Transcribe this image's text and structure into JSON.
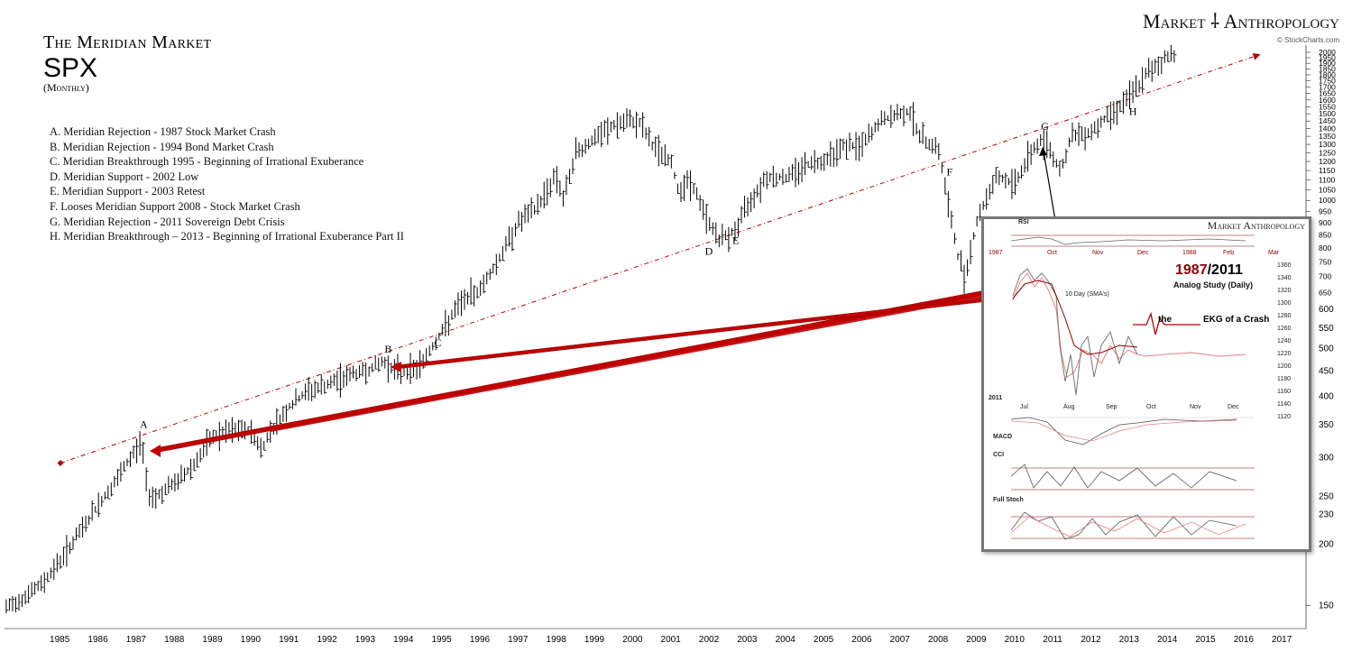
{
  "brand": "Market ⸸ Anthropology",
  "source": "© StockCharts.com",
  "title": {
    "line1": "The Meridian Market",
    "line2": "SPX",
    "line3": "(Monthly)"
  },
  "legend": [
    "A.  Meridian Rejection - 1987 Stock Market Crash",
    "B.  Meridian Rejection - 1994 Bond Market Crash",
    "C.  Meridian Breakthrough 1995 - Beginning of Irrational Exuberance",
    "D.  Meridian Support - 2002 Low",
    "E.  Meridian Support - 2003 Retest",
    "F.  Looses Meridian Support 2008 - Stock Market Crash",
    "G.  Meridian Rejection - 2011 Sovereign Debt Crisis",
    "H.  Meridian Breakthrough – 2013 - Beginning of Irrational Exuberance Part II"
  ],
  "chart_data": {
    "type": "line",
    "scale": "log",
    "xlim": [
      1984.6,
      2017.6
    ],
    "ylim": [
      140,
      2000
    ],
    "x_ticks": [
      "1985",
      "1986",
      "1987",
      "1988",
      "1989",
      "1990",
      "1991",
      "1992",
      "1993",
      "1994",
      "1995",
      "1996",
      "1997",
      "1998",
      "1999",
      "2000",
      "2001",
      "2002",
      "2003",
      "2004",
      "2005",
      "2006",
      "2007",
      "2008",
      "2009",
      "2010",
      "2011",
      "2012",
      "2013",
      "2014",
      "2015",
      "2016",
      "2017"
    ],
    "y_ticks": [
      150,
      200,
      230,
      250,
      300,
      350,
      400,
      450,
      500,
      550,
      600,
      650,
      700,
      750,
      800,
      850,
      900,
      950,
      1000,
      1050,
      1100,
      1150,
      1200,
      1250,
      1300,
      1350,
      1400,
      1450,
      1500,
      1550,
      1600,
      1650,
      1700,
      1750,
      1800,
      1850,
      1900,
      1950,
      2000
    ],
    "series": [
      {
        "x": [
          1985.0,
          1985.5,
          1986.0,
          1986.5,
          1987.0,
          1987.3,
          1987.65,
          1987.8,
          1988.0,
          1988.5,
          1989.0,
          1989.5,
          1990.0,
          1990.5,
          1990.8,
          1991.0,
          1991.5,
          1992.0,
          1992.5,
          1993.0,
          1993.5,
          1994.0,
          1994.3,
          1994.8,
          1995.0,
          1995.5,
          1996.0,
          1996.5,
          1997.0,
          1997.5,
          1998.0,
          1998.5,
          1998.7,
          1999.0,
          1999.5,
          2000.0,
          2000.5,
          2000.7,
          2001.0,
          2001.5,
          2001.7,
          2002.0,
          2002.5,
          2002.8,
          2003.0,
          2003.2,
          2003.5,
          2004.0,
          2004.5,
          2005.0,
          2005.5,
          2006.0,
          2006.5,
          2007.0,
          2007.5,
          2007.8,
          2008.0,
          2008.5,
          2008.8,
          2009.0,
          2009.2,
          2009.5,
          2010.0,
          2010.5,
          2011.0,
          2011.3,
          2011.7,
          2012.0,
          2012.5,
          2013.0,
          2013.5,
          2014.0,
          2014.5,
          2014.7
        ],
        "values": [
          165,
          185,
          210,
          240,
          270,
          295,
          325,
          255,
          250,
          265,
          290,
          330,
          340,
          340,
          310,
          340,
          380,
          410,
          420,
          440,
          450,
          470,
          450,
          455,
          470,
          540,
          620,
          660,
          760,
          900,
          970,
          1130,
          1000,
          1250,
          1330,
          1420,
          1450,
          1440,
          1300,
          1200,
          1050,
          1100,
          900,
          830,
          850,
          870,
          980,
          1120,
          1110,
          1180,
          1210,
          1290,
          1290,
          1450,
          1500,
          1520,
          1350,
          1280,
          950,
          780,
          700,
          900,
          1120,
          1080,
          1280,
          1330,
          1150,
          1350,
          1380,
          1500,
          1620,
          1820,
          1960,
          1990
        ]
      }
    ],
    "meridian_line": {
      "x": [
        1985.0,
        2017.0
      ],
      "values": [
        290,
        1960
      ]
    },
    "annotations": [
      {
        "label": "A",
        "x": 1987.7,
        "value": 345
      },
      {
        "label": "B",
        "x": 1994.1,
        "value": 490
      },
      {
        "label": "C",
        "x": 1995.4,
        "value": 505
      },
      {
        "label": "D",
        "x": 2002.5,
        "value": 775
      },
      {
        "label": "E",
        "x": 2003.2,
        "value": 815
      },
      {
        "label": "F",
        "x": 2008.8,
        "value": 1125
      },
      {
        "label": "G",
        "x": 2011.3,
        "value": 1390
      },
      {
        "label": "H",
        "x": 2013.6,
        "value": 1490
      }
    ]
  },
  "inset": {
    "brand": "Market Anthropology",
    "title_red": "1987",
    "title_black": "/2011",
    "subtitle": "Analog Study (Daily)",
    "ekg_left": "the",
    "ekg_right": "EKG of a Crash",
    "sma_label": "10 Day (SMA's)",
    "year_1987": "1987",
    "year_2011": "2011",
    "months_1987": [
      "Oct",
      "Nov",
      "Dec",
      "1988",
      "Feb",
      "Mar"
    ],
    "months_2011": [
      "Jul",
      "Aug",
      "Sep",
      "Oct",
      "Nov",
      "Dec"
    ],
    "right_axis": [
      "1360",
      "1340",
      "1320",
      "1300",
      "1280",
      "1260",
      "1240",
      "1220",
      "1200",
      "1180",
      "1160",
      "1140",
      "1120"
    ],
    "panels": [
      "RSI",
      "MACD",
      "CCI",
      "Full Stoch"
    ]
  }
}
